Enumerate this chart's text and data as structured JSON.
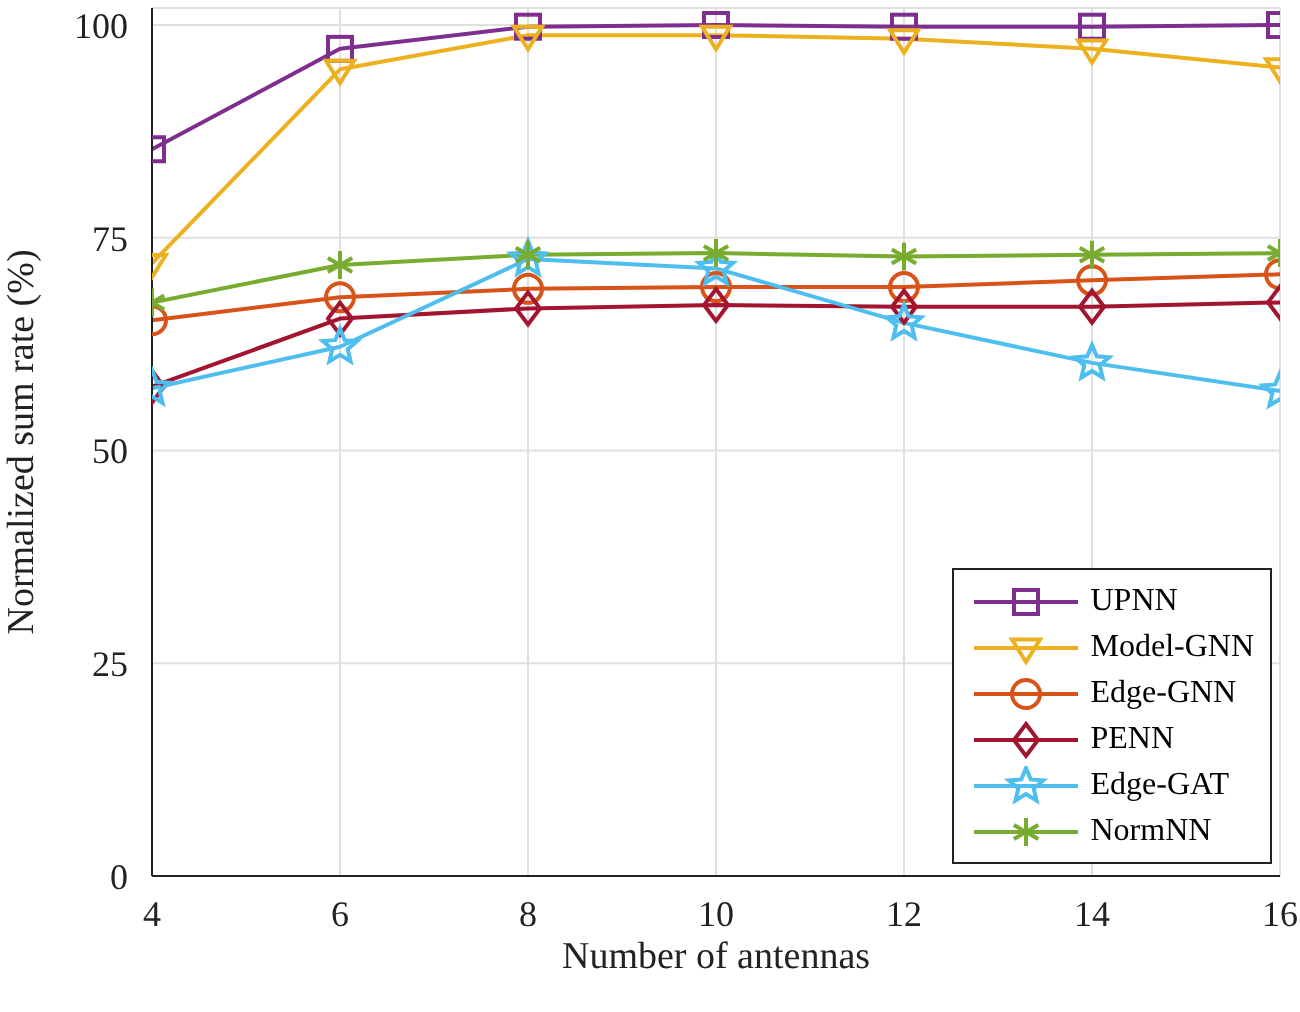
{
  "chart_data": {
    "type": "line",
    "xlabel": "Number of antennas",
    "ylabel": "Normalized sum rate (%)",
    "x": [
      4,
      6,
      8,
      10,
      12,
      14,
      16
    ],
    "xlim": [
      4,
      16
    ],
    "xticks": [
      4,
      6,
      8,
      10,
      12,
      14,
      16
    ],
    "ylim": [
      0,
      102
    ],
    "yticks": [
      0,
      25,
      50,
      75,
      100
    ],
    "grid": true,
    "legend": "bottom right",
    "series": [
      {
        "name": "UPNN",
        "color": "#7e2f8e",
        "marker": "square",
        "values": [
          85.4,
          97.2,
          99.8,
          100,
          99.8,
          99.8,
          100
        ]
      },
      {
        "name": "Model-GNN",
        "color": "#edb120",
        "marker": "triangle",
        "values": [
          72,
          94.8,
          98.8,
          98.8,
          98.4,
          97.2,
          95
        ]
      },
      {
        "name": "Edge-GNN",
        "color": "#d95319",
        "marker": "circle",
        "values": [
          65.3,
          68,
          69,
          69.2,
          69.2,
          70,
          70.7
        ]
      },
      {
        "name": "PENN",
        "color": "#a2142f",
        "marker": "diamond",
        "values": [
          57.5,
          65.5,
          66.7,
          67.1,
          66.9,
          66.9,
          67.4
        ]
      },
      {
        "name": "Edge-GAT",
        "color": "#4dbeee",
        "marker": "star",
        "values": [
          57.3,
          62.2,
          72.5,
          71.4,
          65,
          60.3,
          57
        ]
      },
      {
        "name": "NormNN",
        "color": "#77ac30",
        "marker": "cross",
        "values": [
          67.4,
          71.8,
          73,
          73.2,
          72.8,
          73,
          73.2
        ]
      }
    ]
  }
}
